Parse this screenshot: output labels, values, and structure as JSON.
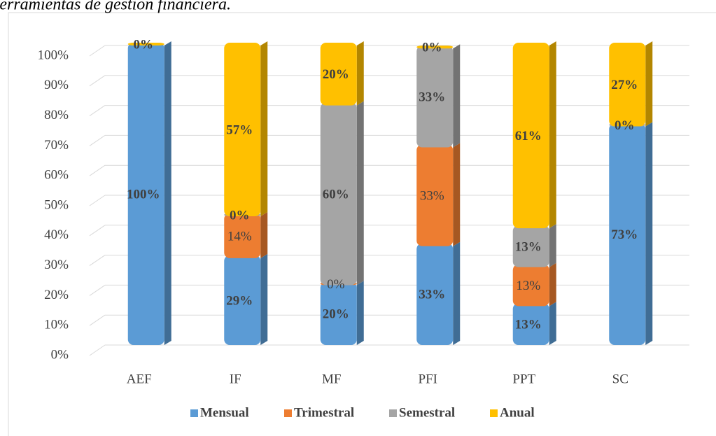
{
  "chart_data": {
    "type": "bar",
    "stacked": true,
    "title": "Herramientas de gestión financiera.",
    "categories": [
      "AEF",
      "IF",
      "MF",
      "PFI",
      "PPT",
      "SC"
    ],
    "series": [
      {
        "name": "Mensual",
        "color": "#5b9bd5",
        "values": [
          100,
          29,
          20,
          33,
          13,
          73
        ],
        "value_labels": [
          "100%",
          "29%",
          "20%",
          "33%",
          "13%",
          "73%"
        ]
      },
      {
        "name": "Trimestral",
        "color": "#ed7d31",
        "values": [
          null,
          14,
          0,
          33,
          13,
          null
        ],
        "value_labels": [
          null,
          "14%",
          "0%",
          "33%",
          "13%",
          null
        ]
      },
      {
        "name": "Semestral",
        "color": "#a5a5a5",
        "values": [
          null,
          0,
          60,
          33,
          13,
          0
        ],
        "value_labels": [
          null,
          "0%",
          "60%",
          "33%",
          "13%",
          "0%"
        ]
      },
      {
        "name": "Anual",
        "color": "#ffc000",
        "values": [
          0,
          57,
          20,
          0,
          61,
          27
        ],
        "value_labels": [
          "0%",
          "57%",
          "20%",
          "0%",
          "61%",
          "27%"
        ]
      }
    ],
    "ylim": [
      0,
      100
    ],
    "yticks": [
      {
        "value": 0,
        "label": "0%"
      },
      {
        "value": 10,
        "label": "10%"
      },
      {
        "value": 20,
        "label": "20%"
      },
      {
        "value": 30,
        "label": "30%"
      },
      {
        "value": 40,
        "label": "40%"
      },
      {
        "value": 50,
        "label": "50%"
      },
      {
        "value": 60,
        "label": "60%"
      },
      {
        "value": 70,
        "label": "70%"
      },
      {
        "value": 80,
        "label": "80%"
      },
      {
        "value": 90,
        "label": "90%"
      },
      {
        "value": 100,
        "label": "100%"
      }
    ],
    "grid": true,
    "legend": "bottom"
  }
}
